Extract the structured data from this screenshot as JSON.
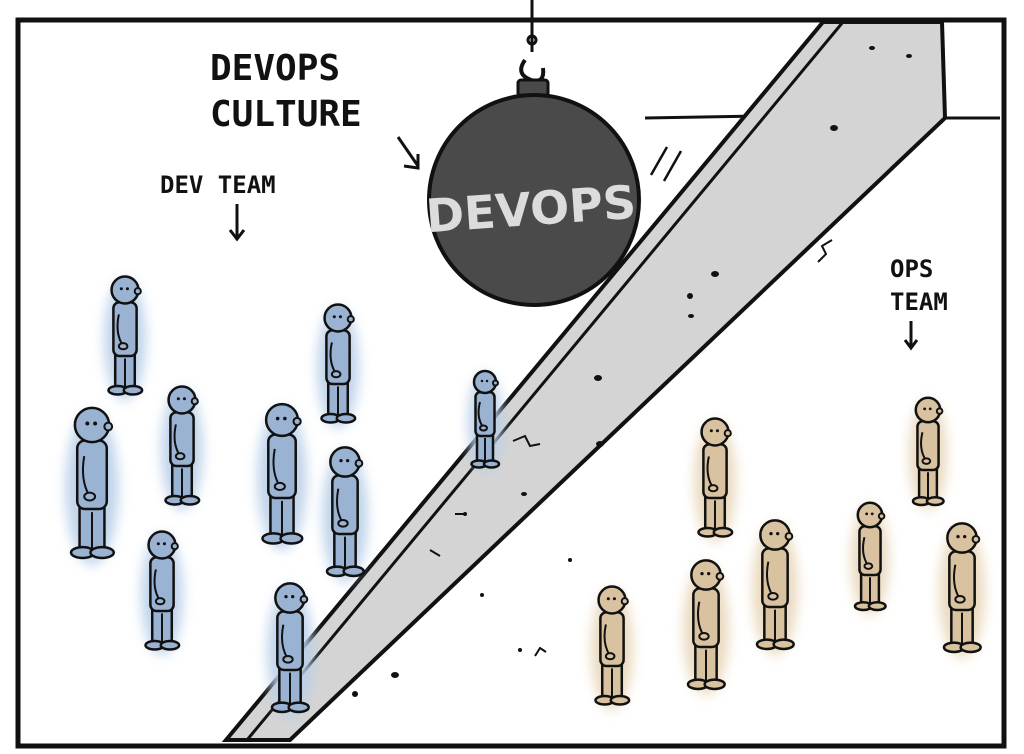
{
  "labels": {
    "devops_culture_line1": "DEVOPS",
    "devops_culture_line2": "CULTURE",
    "ball_text": "DEVOPS",
    "dev_team": "DEV TEAM",
    "ops_team_line1": "OPS",
    "ops_team_line2": "TEAM"
  },
  "colors": {
    "dev_team_fill": "#9ab3d3",
    "dev_team_glow": "#b8cfe8",
    "ops_team_fill": "#d9c2a0",
    "ops_team_glow": "#e8d6b8",
    "wall_fill": "#d4d4d4",
    "ball_fill": "#4a4a4a",
    "outline": "#111111"
  }
}
